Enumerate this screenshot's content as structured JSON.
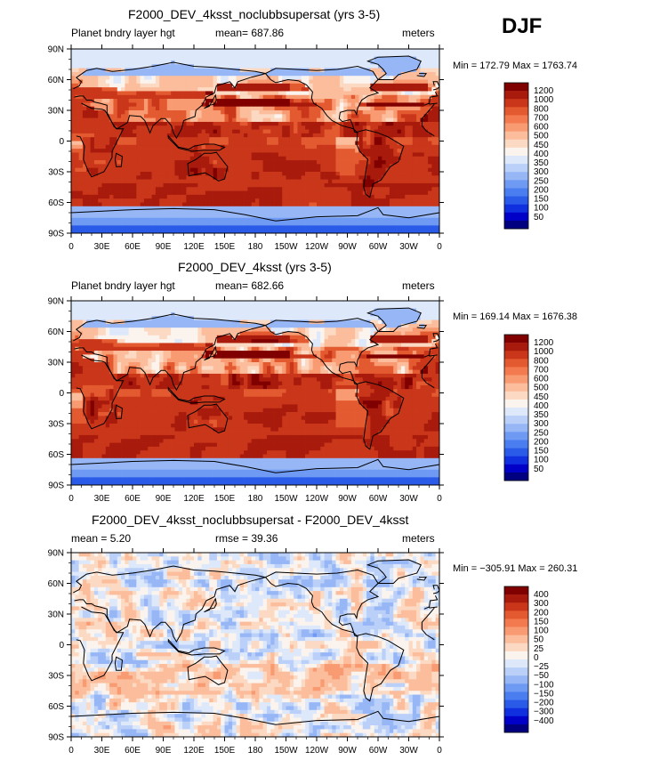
{
  "season": "DJF",
  "colors": {
    "abs_scale": [
      "#000080",
      "#0000c8",
      "#1030e0",
      "#2a5ae8",
      "#4a7ef0",
      "#6e9af4",
      "#96b6f6",
      "#bad0f8",
      "#dde8fb",
      "#fbf4ee",
      "#fcd9c2",
      "#fbbd9b",
      "#f99b72",
      "#f37a4e",
      "#e45a30",
      "#c9361a",
      "#a81a0c",
      "#800000"
    ],
    "diff_scale": [
      "#000080",
      "#0000c8",
      "#1030e0",
      "#2a5ae8",
      "#4a7ef0",
      "#6e9af4",
      "#96b6f6",
      "#bad0f8",
      "#dde8fb",
      "#fbf4ee",
      "#fcd9c2",
      "#fbbd9b",
      "#f99b72",
      "#f37a4e",
      "#e45a30",
      "#c9361a",
      "#a81a0c",
      "#800000"
    ]
  },
  "chart_data": [
    {
      "type": "heatmap",
      "title": "F2000_DEV_4ksst_noclubbsupersat (yrs 3-5)",
      "left_label": "Planet bndry layer hgt",
      "stat_label": "mean= 687.86",
      "units": "meters",
      "minmax": "Min = 172.79 Max = 1763.74",
      "xticks": [
        "0",
        "30E",
        "60E",
        "90E",
        "120E",
        "150E",
        "180",
        "150W",
        "120W",
        "90W",
        "60W",
        "30W",
        "0"
      ],
      "yticks": [
        "90N",
        "60N",
        "30N",
        "0",
        "30S",
        "60S",
        "90S"
      ],
      "colorbar_labels": [
        "1200",
        "1000",
        "800",
        "700",
        "600",
        "500",
        "450",
        "400",
        "350",
        "300",
        "250",
        "200",
        "150",
        "100",
        "50"
      ],
      "field": "abs_a"
    },
    {
      "type": "heatmap",
      "title": "F2000_DEV_4ksst (yrs 3-5)",
      "left_label": "Planet bndry layer hgt",
      "stat_label": "mean= 682.66",
      "units": "meters",
      "minmax": "Min = 169.14 Max = 1676.38",
      "xticks": [
        "0",
        "30E",
        "60E",
        "90E",
        "120E",
        "150E",
        "180",
        "150W",
        "120W",
        "90W",
        "60W",
        "30W",
        "0"
      ],
      "yticks": [
        "90N",
        "60N",
        "30N",
        "0",
        "30S",
        "60S",
        "90S"
      ],
      "colorbar_labels": [
        "1200",
        "1000",
        "800",
        "700",
        "600",
        "500",
        "450",
        "400",
        "350",
        "300",
        "250",
        "200",
        "150",
        "100",
        "50"
      ],
      "field": "abs_b"
    },
    {
      "type": "heatmap",
      "title": "F2000_DEV_4ksst_noclubbsupersat - F2000_DEV_4ksst",
      "left_label": "mean =    5.20",
      "stat_label": "rmse =   39.36",
      "units": "meters",
      "minmax": "Min = −305.91 Max = 260.31",
      "xticks": [
        "0",
        "30E",
        "60E",
        "90E",
        "120E",
        "150E",
        "180",
        "150W",
        "120W",
        "90W",
        "60W",
        "30W",
        "0"
      ],
      "yticks": [
        "90N",
        "60N",
        "30N",
        "0",
        "30S",
        "60S",
        "90S"
      ],
      "colorbar_labels": [
        "400",
        "300",
        "200",
        "150",
        "100",
        "50",
        "25",
        "0",
        "−25",
        "−50",
        "−100",
        "−150",
        "−200",
        "−300",
        "−400"
      ],
      "field": "diff"
    }
  ]
}
